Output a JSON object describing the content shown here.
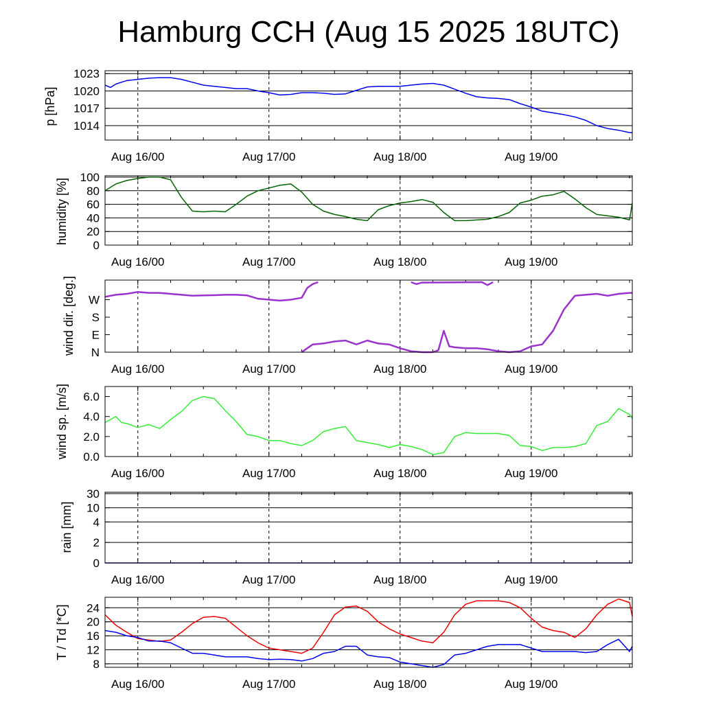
{
  "title": "Hamburg CCH (Aug 15 2025 18UTC)",
  "chart_data": [
    {
      "id": "pressure",
      "type": "line",
      "ylabel": "p [hPa]",
      "x_ticks": [
        "Aug 16/00",
        "Aug 17/00",
        "Aug 18/00",
        "Aug 19/00"
      ],
      "yticks": [
        1023,
        1020,
        1017,
        1014
      ],
      "ylim": [
        1011.5,
        1023.5
      ],
      "grid": true,
      "series": [
        {
          "color": "#0000ee",
          "x": [
            -6,
            -5.5,
            -5,
            -4,
            -3,
            -2,
            -1,
            0,
            2,
            4,
            6,
            8,
            10,
            12,
            14,
            16,
            18,
            20,
            22,
            24,
            26,
            28,
            30,
            32,
            34,
            36,
            38,
            40,
            42,
            44,
            46,
            48,
            50,
            52,
            54,
            56,
            58,
            60,
            62,
            64,
            66,
            68,
            70,
            72,
            74,
            76,
            78,
            80,
            82,
            84,
            86,
            88,
            90,
            90.5
          ],
          "y": [
            1021,
            1020.8,
            1020.6,
            1021.2,
            1021.5,
            1021.8,
            1021.9,
            1022,
            1022.2,
            1022.3,
            1022.3,
            1022,
            1021.5,
            1021,
            1020.8,
            1020.6,
            1020.4,
            1020.4,
            1020,
            1019.7,
            1019.3,
            1019.4,
            1019.7,
            1019.7,
            1019.6,
            1019.4,
            1019.5,
            1020.1,
            1020.7,
            1020.8,
            1020.8,
            1020.8,
            1021,
            1021.2,
            1021.3,
            1021,
            1020.3,
            1019.6,
            1019,
            1018.8,
            1018.7,
            1018.5,
            1017.8,
            1017.2,
            1016.5,
            1016.2,
            1015.9,
            1015.5,
            1014.9,
            1014,
            1013.5,
            1013.2,
            1012.8,
            1012.8
          ]
        }
      ]
    },
    {
      "id": "humidity",
      "type": "line",
      "ylabel": "humidity [%]",
      "x_ticks": [
        "Aug 16/00",
        "Aug 17/00",
        "Aug 18/00",
        "Aug 19/00"
      ],
      "yticks": [
        100,
        80,
        60,
        40,
        20,
        0
      ],
      "ylim": [
        0,
        102
      ],
      "grid": true,
      "series": [
        {
          "color": "#006400",
          "x": [
            -6,
            -4,
            -2,
            0,
            2,
            4,
            6,
            8,
            10,
            12,
            14,
            16,
            18,
            20,
            22,
            24,
            26,
            28,
            30,
            32,
            34,
            36,
            38,
            40,
            42,
            44,
            46,
            48,
            50,
            52,
            54,
            56,
            58,
            60,
            62,
            64,
            66,
            68,
            70,
            72,
            74,
            76,
            78,
            80,
            82,
            84,
            86,
            88,
            90,
            90.5
          ],
          "y": [
            80,
            90,
            95,
            98,
            100,
            100,
            96,
            70,
            50,
            49,
            50,
            49,
            60,
            72,
            80,
            84,
            88,
            90,
            78,
            60,
            50,
            45,
            42,
            38,
            36,
            52,
            58,
            62,
            64,
            67,
            63,
            48,
            36,
            36,
            37,
            38,
            42,
            48,
            62,
            66,
            72,
            74,
            79,
            68,
            55,
            45,
            43,
            41,
            37,
            62
          ]
        }
      ]
    },
    {
      "id": "wind-direction",
      "type": "scatter",
      "ylabel": "wind dir. [deg.]",
      "x_ticks": [
        "Aug 16/00",
        "Aug 17/00",
        "Aug 18/00",
        "Aug 19/00"
      ],
      "ytick_labels": [
        "W",
        "S",
        "E",
        "N"
      ],
      "yticks": [
        270,
        180,
        90,
        0
      ],
      "ylim": [
        0,
        360
      ],
      "grid": false,
      "series": [
        {
          "color": "#9933cc",
          "x": [
            -6,
            -4,
            -2,
            0,
            2,
            4,
            6,
            8,
            10,
            12,
            14,
            16,
            18,
            20,
            22,
            24,
            26,
            28,
            30,
            31,
            32,
            33
          ],
          "y": [
            285,
            295,
            300,
            310,
            305,
            305,
            300,
            295,
            290,
            292,
            293,
            295,
            295,
            292,
            275,
            270,
            265,
            270,
            280,
            330,
            350,
            360
          ]
        },
        {
          "color": "#9933cc",
          "x": [
            30,
            32,
            34,
            36,
            38,
            40,
            42,
            44,
            46,
            48,
            50,
            52,
            54,
            55,
            56,
            57,
            58,
            60,
            62,
            64,
            66,
            68,
            70,
            72,
            74,
            76,
            78,
            80,
            82,
            84,
            86,
            88,
            90,
            90.5
          ],
          "y": [
            0,
            40,
            45,
            55,
            60,
            40,
            60,
            45,
            40,
            20,
            5,
            0,
            0,
            10,
            110,
            30,
            25,
            20,
            20,
            15,
            5,
            0,
            5,
            30,
            40,
            110,
            220,
            290,
            295,
            300,
            290,
            300,
            305,
            305
          ]
        },
        {
          "color": "#9933cc",
          "x": [
            50,
            51,
            52,
            63,
            64,
            65
          ],
          "y": [
            360,
            350,
            358,
            360,
            345,
            360
          ]
        }
      ]
    },
    {
      "id": "wind-speed",
      "type": "line",
      "ylabel": "wind sp. [m/s]",
      "x_ticks": [
        "Aug 16/00",
        "Aug 17/00",
        "Aug 18/00",
        "Aug 19/00"
      ],
      "yticks": [
        6.0,
        4.0,
        2.0,
        0.0
      ],
      "ytick_labels": [
        "6.0",
        "4.0",
        "2.0",
        "0.0"
      ],
      "ylim": [
        0,
        7
      ],
      "grid": false,
      "series": [
        {
          "color": "#33ee33",
          "x": [
            -6,
            -4,
            -3,
            -2,
            0,
            2,
            4,
            6,
            8,
            10,
            12,
            14,
            16,
            18,
            20,
            22,
            24,
            26,
            28,
            30,
            32,
            34,
            36,
            38,
            40,
            42,
            44,
            46,
            48,
            50,
            52,
            54,
            56,
            58,
            60,
            62,
            64,
            66,
            68,
            70,
            72,
            74,
            76,
            78,
            80,
            82,
            84,
            86,
            88,
            90,
            90.5
          ],
          "y": [
            3.4,
            4,
            3.4,
            3.3,
            2.9,
            3.2,
            2.8,
            3.7,
            4.5,
            5.6,
            6,
            5.8,
            4.6,
            3.5,
            2.2,
            2,
            1.6,
            1.6,
            1.3,
            1.1,
            1.6,
            2.5,
            2.8,
            3,
            1.6,
            1.4,
            1.2,
            0.9,
            1.2,
            1,
            0.7,
            0.2,
            0.4,
            2,
            2.4,
            2.3,
            2.3,
            2.3,
            2.1,
            1.1,
            1,
            0.6,
            0.9,
            0.9,
            1.0,
            1.3,
            3.1,
            3.5,
            4.8,
            4.2,
            3.8
          ]
        }
      ]
    },
    {
      "id": "rain",
      "type": "line",
      "ylabel": "rain [mm]",
      "x_ticks": [
        "Aug 16/00",
        "Aug 17/00",
        "Aug 18/00",
        "Aug 19/00"
      ],
      "yticks": [
        30,
        10,
        4,
        2,
        0
      ],
      "ytick_labels": [
        "30",
        "10",
        "4",
        "2",
        "0"
      ],
      "ylim": [
        0,
        30
      ],
      "grid": true,
      "series": [
        {
          "color": "#0000aa",
          "x": [
            -6,
            90.5
          ],
          "y": [
            0,
            0
          ]
        }
      ]
    },
    {
      "id": "temperature",
      "type": "line",
      "ylabel": "T / Td [*C]",
      "x_ticks": [
        "Aug 16/00",
        "Aug 17/00",
        "Aug 18/00",
        "Aug 19/00"
      ],
      "yticks": [
        24,
        20,
        16,
        12,
        8
      ],
      "ylim": [
        7,
        27
      ],
      "grid": true,
      "series": [
        {
          "color": "#ee0000",
          "x": [
            -6,
            -4,
            -2,
            0,
            2,
            4,
            6,
            8,
            10,
            12,
            14,
            16,
            18,
            20,
            22,
            24,
            26,
            28,
            30,
            32,
            34,
            36,
            38,
            40,
            42,
            44,
            46,
            48,
            50,
            52,
            54,
            56,
            58,
            60,
            62,
            64,
            66,
            68,
            70,
            72,
            74,
            76,
            78,
            80,
            82,
            84,
            86,
            88,
            90,
            90.5
          ],
          "y": [
            22,
            19,
            17,
            15.2,
            14.8,
            14.4,
            14.8,
            17,
            19.5,
            21.3,
            21.5,
            21,
            18.5,
            16,
            14,
            12.5,
            12,
            11.5,
            11,
            12.5,
            17,
            22,
            24.2,
            24.5,
            23,
            20,
            18,
            16.5,
            15.5,
            14.5,
            14,
            17,
            22,
            25,
            26,
            26,
            26,
            25.5,
            24,
            21,
            18.5,
            17.5,
            17,
            15.5,
            18,
            22,
            25,
            26.5,
            25.5,
            21.5
          ]
        },
        {
          "color": "#0000ee",
          "x": [
            -6,
            -4,
            -2,
            0,
            2,
            4,
            6,
            8,
            10,
            12,
            14,
            16,
            18,
            20,
            22,
            24,
            26,
            28,
            30,
            32,
            34,
            36,
            38,
            40,
            42,
            44,
            46,
            48,
            50,
            52,
            54,
            56,
            58,
            60,
            62,
            64,
            66,
            68,
            70,
            72,
            74,
            76,
            78,
            80,
            82,
            84,
            86,
            88,
            90,
            90.5
          ],
          "y": [
            17.5,
            17,
            16,
            15.5,
            14.5,
            14.5,
            14,
            12.5,
            11,
            11,
            10.5,
            10,
            10,
            10,
            9.5,
            9.2,
            9.3,
            9.2,
            8.8,
            9.5,
            11,
            11.5,
            13,
            13,
            10.5,
            10,
            9.8,
            8.5,
            8,
            7.5,
            7,
            7.8,
            10.5,
            11,
            12,
            13,
            13.5,
            13.5,
            13.5,
            12.5,
            11.5,
            11.5,
            11.5,
            11.5,
            11.2,
            11.5,
            13.5,
            15,
            11.5,
            13
          ]
        }
      ]
    }
  ]
}
